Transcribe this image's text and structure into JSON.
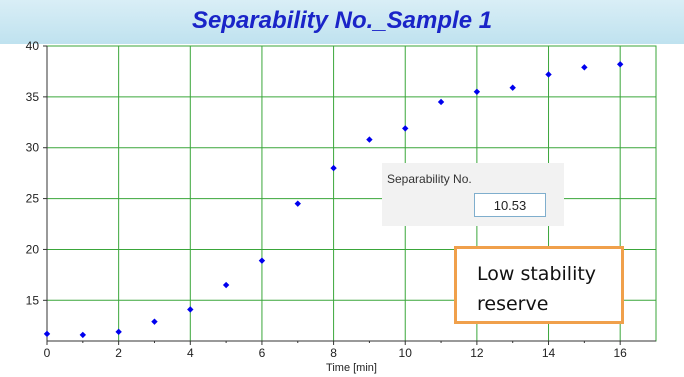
{
  "chart_data": {
    "type": "scatter",
    "title": "Separability No._Sample 1",
    "xlabel": "Time [min]",
    "ylabel": "",
    "xlim": [
      0,
      17
    ],
    "ylim": [
      11,
      40
    ],
    "x_ticks": [
      0,
      2,
      4,
      6,
      8,
      10,
      12,
      14,
      16
    ],
    "y_ticks": [
      15,
      20,
      25,
      30,
      35,
      40
    ],
    "grid": true,
    "series": [
      {
        "x": [
          0,
          1,
          2,
          3,
          4,
          5,
          6,
          7,
          8,
          9,
          10,
          11,
          12,
          13,
          14,
          15,
          16
        ],
        "y": [
          11.7,
          11.6,
          11.9,
          12.9,
          14.1,
          16.5,
          18.9,
          24.5,
          28.0,
          30.8,
          31.9,
          34.5,
          35.5,
          35.9,
          37.2,
          37.9,
          38.2
        ]
      }
    ],
    "colors": {
      "marker": "#0000ee",
      "grid": "#3aa63a",
      "title": "#1a24c8",
      "title_bg": "#bfe2ef",
      "callout_border": "#f0a04b"
    }
  },
  "info_box": {
    "label": "Separability No.",
    "value": "10.53"
  },
  "callout": {
    "text_line1": "Low stability",
    "text_line2": "reserve"
  }
}
